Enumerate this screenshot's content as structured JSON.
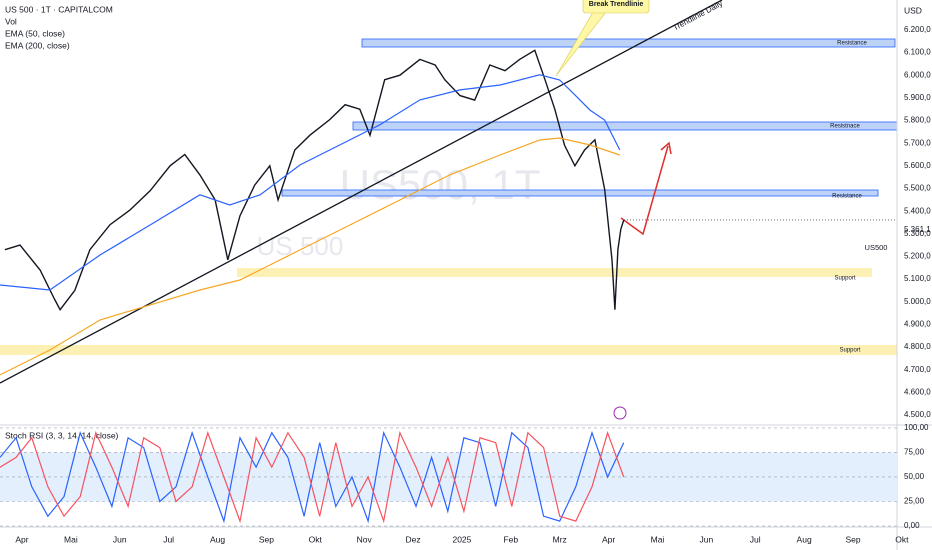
{
  "chart_data": [
    {
      "type": "line",
      "title": "US 500 · 1T · CAPITALCOM",
      "indicator_labels": [
        "Vol"
      ],
      "currency": "USD",
      "watermark": [
        "US500, 1T",
        "US 500"
      ],
      "annotations": [
        "Break Trendlinie",
        "Trendlinie Daily",
        "Resistance",
        "Resistnace",
        "Resistance",
        "Support",
        "Support"
      ],
      "last_price": {
        "value": 5361.1,
        "label": "5.361,1"
      },
      "xlim": [
        -0.45,
        17.9
      ],
      "xticks": [
        {
          "value": 0,
          "label": "Apr"
        },
        {
          "value": 1,
          "label": "Mai"
        },
        {
          "value": 2,
          "label": "Jun"
        },
        {
          "value": 3,
          "label": "Jul"
        },
        {
          "value": 4,
          "label": "Aug"
        },
        {
          "value": 5,
          "label": "Sep"
        },
        {
          "value": 6,
          "label": "Okt"
        },
        {
          "value": 7,
          "label": "Nov"
        },
        {
          "value": 8,
          "label": "Dez"
        },
        {
          "value": 9,
          "label": "2025"
        },
        {
          "value": 10,
          "label": "Feb"
        },
        {
          "value": 11,
          "label": "Mrz"
        },
        {
          "value": 12,
          "label": "Apr"
        },
        {
          "value": 13,
          "label": "Mai"
        },
        {
          "value": 14,
          "label": "Jun"
        },
        {
          "value": 15,
          "label": "Jul"
        },
        {
          "value": 16,
          "label": "Aug"
        },
        {
          "value": 17,
          "label": "Sep"
        },
        {
          "value": 18,
          "label": "Okt"
        }
      ],
      "ylim": [
        4456,
        6332
      ],
      "yticks": [
        {
          "value": 6200,
          "label": "6.200,0"
        },
        {
          "value": 6100,
          "label": "6.100,0"
        },
        {
          "value": 6000,
          "label": "6.000,0"
        },
        {
          "value": 5900,
          "label": "5.900,0"
        },
        {
          "value": 5800,
          "label": "5.800,0"
        },
        {
          "value": 5700,
          "label": "5.700,0"
        },
        {
          "value": 5600,
          "label": "5.600,0"
        },
        {
          "value": 5500,
          "label": "5.500,0"
        },
        {
          "value": 5400,
          "label": "5.400,0"
        },
        {
          "value": 5300,
          "label": "5.300,0"
        },
        {
          "value": 5200,
          "label": "5.200,0"
        },
        {
          "value": 5100,
          "label": "5.100,0"
        },
        {
          "value": 5000,
          "label": "5.000,0"
        },
        {
          "value": 4900,
          "label": "4.900,0"
        },
        {
          "value": 4800,
          "label": "4.800,0"
        },
        {
          "value": 4700,
          "label": "4.700,0"
        },
        {
          "value": 4600,
          "label": "4.600,0"
        },
        {
          "value": 4500,
          "label": "4.500,0"
        }
      ],
      "series": [
        {
          "name": "US500",
          "color": "#131722",
          "x": [
            -0.35,
            -0.04,
            0.37,
            0.67,
            0.78,
            1.08,
            1.39,
            1.8,
            2.21,
            2.62,
            3.03,
            3.33,
            3.64,
            3.95,
            4.21,
            4.46,
            4.76,
            5.07,
            5.24,
            5.58,
            5.89,
            6.3,
            6.61,
            6.91,
            7.12,
            7.42,
            7.73,
            8.14,
            8.45,
            8.65,
            8.96,
            9.26,
            9.57,
            9.88,
            10.18,
            10.49,
            10.7,
            10.9,
            11.1,
            11.31,
            11.51,
            11.72,
            11.92,
            12.07,
            12.13,
            12.19,
            12.25,
            12.31
          ],
          "values": [
            5230,
            5250,
            5140,
            5010,
            4965,
            5050,
            5230,
            5340,
            5405,
            5490,
            5600,
            5650,
            5560,
            5450,
            5185,
            5380,
            5515,
            5600,
            5450,
            5670,
            5735,
            5805,
            5870,
            5850,
            5735,
            5980,
            6000,
            6070,
            6045,
            5980,
            5910,
            5890,
            6045,
            6020,
            6070,
            6110,
            5980,
            5850,
            5690,
            5600,
            5670,
            5715,
            5495,
            5185,
            4965,
            5230,
            5320,
            5360
          ]
        },
        {
          "name": "EMA (50, close)",
          "color": "#2962ff",
          "x": [
            -0.45,
            0.57,
            1.6,
            2.62,
            3.64,
            4.25,
            4.87,
            5.69,
            6.5,
            7.32,
            8.14,
            8.96,
            9.78,
            10.59,
            11.0,
            11.31,
            11.62,
            11.92,
            12.23
          ],
          "values": [
            5074,
            5052,
            5207,
            5339,
            5472,
            5427,
            5472,
            5604,
            5692,
            5781,
            5891,
            5935,
            5957,
            6002,
            5979,
            5913,
            5846,
            5802,
            5670
          ]
        },
        {
          "name": "EMA (200, close)",
          "color": "#f5a623",
          "x": [
            -0.45,
            0.57,
            1.6,
            2.62,
            3.64,
            4.46,
            5.69,
            6.71,
            7.73,
            8.75,
            9.78,
            10.59,
            11.0,
            11.62,
            12.23
          ],
          "values": [
            4677,
            4787,
            4920,
            4986,
            5052,
            5096,
            5229,
            5339,
            5449,
            5560,
            5648,
            5714,
            5723,
            5692,
            5648
          ]
        }
      ]
    },
    {
      "type": "line",
      "title": "Stoch RSI (3, 3, 14, 14, close)",
      "xlim": [
        -0.45,
        17.9
      ],
      "ylim": [
        -1,
        103
      ],
      "yticks": [
        {
          "value": 100,
          "label": "100,00"
        },
        {
          "value": 75,
          "label": "75,00"
        },
        {
          "value": 50,
          "label": "50,00"
        },
        {
          "value": 25,
          "label": "25,00"
        },
        {
          "value": 0,
          "label": "0,00"
        }
      ],
      "series": [
        {
          "name": "K",
          "color": "#2962ff",
          "x": [
            -0.45,
            -0.12,
            0.2,
            0.53,
            0.86,
            1.19,
            1.51,
            1.84,
            2.17,
            2.49,
            2.82,
            3.15,
            3.48,
            3.8,
            4.13,
            4.46,
            4.79,
            5.11,
            5.44,
            5.77,
            6.09,
            6.42,
            6.75,
            7.08,
            7.4,
            7.73,
            8.06,
            8.38,
            8.71,
            9.04,
            9.37,
            9.69,
            10.02,
            10.35,
            10.67,
            11.0,
            11.33,
            11.66,
            11.98,
            12.31
          ],
          "values": [
            70,
            90,
            40,
            10,
            30,
            95,
            60,
            20,
            90,
            80,
            25,
            40,
            95,
            50,
            5,
            90,
            60,
            95,
            70,
            10,
            85,
            20,
            50,
            5,
            95,
            60,
            20,
            70,
            15,
            90,
            85,
            20,
            95,
            80,
            10,
            5,
            40,
            95,
            50,
            85
          ]
        },
        {
          "name": "D",
          "color": "#f7525f",
          "x": [
            -0.45,
            -0.12,
            0.2,
            0.53,
            0.86,
            1.19,
            1.51,
            1.84,
            2.17,
            2.49,
            2.82,
            3.15,
            3.48,
            3.8,
            4.13,
            4.46,
            4.79,
            5.11,
            5.44,
            5.77,
            6.09,
            6.42,
            6.75,
            7.08,
            7.4,
            7.73,
            8.06,
            8.38,
            8.71,
            9.04,
            9.37,
            9.69,
            10.02,
            10.35,
            10.67,
            11.0,
            11.33,
            11.66,
            11.98,
            12.31
          ],
          "values": [
            60,
            70,
            90,
            40,
            10,
            30,
            95,
            60,
            20,
            90,
            80,
            25,
            40,
            95,
            50,
            5,
            90,
            60,
            95,
            70,
            10,
            85,
            20,
            50,
            5,
            95,
            60,
            20,
            70,
            15,
            90,
            85,
            20,
            95,
            80,
            10,
            5,
            40,
            95,
            50
          ]
        }
      ]
    }
  ]
}
